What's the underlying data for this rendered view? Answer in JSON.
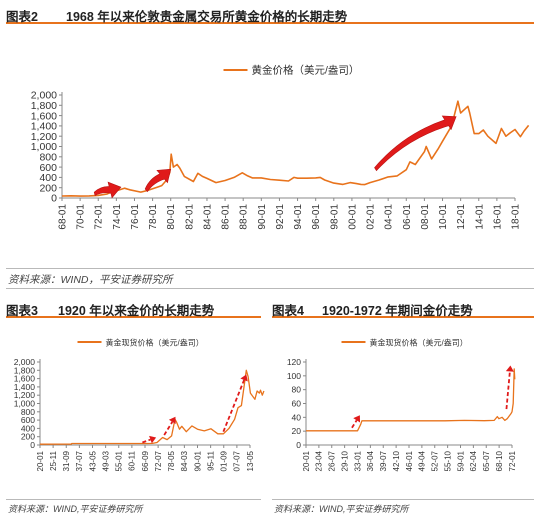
{
  "figures": [
    {
      "number": "图表2",
      "title": "1968 年以来伦敦贵金属交易所黄金价格的长期走势",
      "source": "资料来源：WIND，平安证券研究所"
    },
    {
      "number": "图表3",
      "title": "1920 年以来金价的长期走势",
      "source": "资料来源：WIND,平安证券研究所"
    },
    {
      "number": "图表4",
      "title": "1920-1972 年期间金价走势",
      "source": "资料来源：WIND,平安证券研究所"
    }
  ],
  "colors": {
    "series": "#e8731c",
    "arrow": "#e01a1a",
    "rule": "#e8731c"
  },
  "chart_data": [
    {
      "type": "line",
      "title": "",
      "legend": "黄金价格（美元/盎司）",
      "legend_position": "top-center",
      "x": [
        "68-01",
        "70-01",
        "72-01",
        "74-01",
        "76-01",
        "78-01",
        "80-01",
        "82-01",
        "84-01",
        "86-01",
        "88-01",
        "90-01",
        "92-01",
        "94-01",
        "96-01",
        "98-01",
        "00-01",
        "02-01",
        "04-01",
        "06-01",
        "08-01",
        "10-01",
        "12-01",
        "14-01",
        "16-01",
        "18-01"
      ],
      "x_tick_labels": [
        "68-01",
        "70-01",
        "72-01",
        "74-01",
        "76-01",
        "78-01",
        "80-01",
        "82-01",
        "84-01",
        "86-01",
        "88-01",
        "90-01",
        "92-01",
        "94-01",
        "96-01",
        "98-01",
        "00-01",
        "02-01",
        "04-01",
        "06-01",
        "08-01",
        "10-01",
        "12-01",
        "14-01",
        "16-01",
        "18-01"
      ],
      "y_ticks": [
        0,
        200,
        400,
        600,
        800,
        1000,
        1200,
        1400,
        1600,
        1800,
        2000
      ],
      "y_tick_labels": [
        "0",
        "200",
        "400",
        "600",
        "800",
        "1,000",
        "1,200",
        "1,400",
        "1,600",
        "1,800",
        "2,000"
      ],
      "ylim": [
        0,
        2000
      ],
      "points": [
        [
          1968.0,
          38
        ],
        [
          1969.0,
          42
        ],
        [
          1970.0,
          36
        ],
        [
          1971.0,
          40
        ],
        [
          1972.0,
          50
        ],
        [
          1973.0,
          80
        ],
        [
          1973.5,
          120
        ],
        [
          1974.0,
          140
        ],
        [
          1974.9,
          190
        ],
        [
          1975.5,
          160
        ],
        [
          1976.7,
          115
        ],
        [
          1977.5,
          150
        ],
        [
          1978.5,
          210
        ],
        [
          1979.0,
          240
        ],
        [
          1979.6,
          360
        ],
        [
          1979.9,
          500
        ],
        [
          1980.05,
          850
        ],
        [
          1980.3,
          600
        ],
        [
          1980.7,
          650
        ],
        [
          1981.0,
          580
        ],
        [
          1981.5,
          420
        ],
        [
          1982.5,
          320
        ],
        [
          1983.0,
          480
        ],
        [
          1983.5,
          420
        ],
        [
          1984.0,
          380
        ],
        [
          1985.0,
          300
        ],
        [
          1986.0,
          340
        ],
        [
          1987.0,
          400
        ],
        [
          1987.9,
          490
        ],
        [
          1988.5,
          430
        ],
        [
          1989.0,
          390
        ],
        [
          1990.0,
          390
        ],
        [
          1991.0,
          360
        ],
        [
          1992.0,
          345
        ],
        [
          1993.0,
          330
        ],
        [
          1993.6,
          400
        ],
        [
          1994.0,
          385
        ],
        [
          1995.0,
          385
        ],
        [
          1996.0,
          390
        ],
        [
          1996.5,
          400
        ],
        [
          1997.0,
          350
        ],
        [
          1998.0,
          290
        ],
        [
          1999.0,
          265
        ],
        [
          1999.8,
          300
        ],
        [
          2000.5,
          280
        ],
        [
          2001.0,
          265
        ],
        [
          2001.4,
          260
        ],
        [
          2002.0,
          300
        ],
        [
          2003.0,
          350
        ],
        [
          2004.0,
          410
        ],
        [
          2005.0,
          430
        ],
        [
          2006.0,
          550
        ],
        [
          2006.4,
          700
        ],
        [
          2007.0,
          650
        ],
        [
          2008.0,
          900
        ],
        [
          2008.2,
          1000
        ],
        [
          2008.8,
          760
        ],
        [
          2009.5,
          950
        ],
        [
          2010.0,
          1100
        ],
        [
          2011.0,
          1400
        ],
        [
          2011.7,
          1880
        ],
        [
          2012.0,
          1650
        ],
        [
          2012.8,
          1780
        ],
        [
          2013.0,
          1650
        ],
        [
          2013.5,
          1250
        ],
        [
          2014.0,
          1250
        ],
        [
          2014.5,
          1320
        ],
        [
          2015.0,
          1200
        ],
        [
          2015.9,
          1060
        ],
        [
          2016.5,
          1350
        ],
        [
          2017.0,
          1200
        ],
        [
          2017.5,
          1270
        ],
        [
          2018.0,
          1330
        ],
        [
          2018.6,
          1190
        ],
        [
          2019.0,
          1300
        ],
        [
          2019.5,
          1410
        ]
      ],
      "arrows": [
        {
          "from": [
            1971.6,
            80
          ],
          "to": [
            1974.5,
            210
          ]
        },
        {
          "from": [
            1977.3,
            150
          ],
          "to": [
            1980.0,
            560
          ]
        },
        {
          "from": [
            2002.6,
            560
          ],
          "to": [
            2011.5,
            1580
          ]
        }
      ]
    },
    {
      "type": "line",
      "title": "",
      "legend": "黄金现货价格（美元/盎司）",
      "legend_position": "top-center",
      "x_tick_labels": [
        "20-01",
        "25-11",
        "31-09",
        "37-07",
        "43-05",
        "49-03",
        "55-01",
        "60-11",
        "66-09",
        "72-07",
        "78-05",
        "84-03",
        "90-01",
        "95-11",
        "01-09",
        "07-07",
        "13-05"
      ],
      "y_ticks": [
        0,
        200,
        400,
        600,
        800,
        1000,
        1200,
        1400,
        1600,
        1800,
        2000
      ],
      "y_tick_labels": [
        "0",
        "200",
        "400",
        "600",
        "800",
        "1,000",
        "1,200",
        "1,400",
        "1,600",
        "1,800",
        "2,000"
      ],
      "ylim": [
        0,
        2000
      ],
      "points": [
        [
          1920.0,
          20
        ],
        [
          1933.9,
          21
        ],
        [
          1934.1,
          35
        ],
        [
          1968.0,
          35
        ],
        [
          1970.0,
          38
        ],
        [
          1972.0,
          60
        ],
        [
          1974.5,
          180
        ],
        [
          1976.5,
          130
        ],
        [
          1978.5,
          220
        ],
        [
          1980.0,
          620
        ],
        [
          1980.6,
          560
        ],
        [
          1982.0,
          380
        ],
        [
          1983.0,
          450
        ],
        [
          1985.0,
          320
        ],
        [
          1987.5,
          460
        ],
        [
          1990.0,
          380
        ],
        [
          1993.0,
          340
        ],
        [
          1996.0,
          390
        ],
        [
          1999.0,
          270
        ],
        [
          2001.5,
          270
        ],
        [
          2004.0,
          400
        ],
        [
          2006.5,
          620
        ],
        [
          2008.0,
          900
        ],
        [
          2009.5,
          950
        ],
        [
          2011.7,
          1800
        ],
        [
          2012.5,
          1650
        ],
        [
          2013.5,
          1250
        ],
        [
          2015.5,
          1100
        ],
        [
          2016.5,
          1300
        ],
        [
          2017.5,
          1250
        ],
        [
          2018.0,
          1320
        ],
        [
          2018.8,
          1200
        ],
        [
          2019.5,
          1300
        ]
      ],
      "arrows": [
        {
          "from": [
            1965.5,
            60
          ],
          "to": [
            1971.6,
            180
          ]
        },
        {
          "from": [
            1975.2,
            240
          ],
          "to": [
            1980.2,
            680
          ]
        },
        {
          "from": [
            2001.5,
            320
          ],
          "to": [
            2011.7,
            1700
          ]
        }
      ]
    },
    {
      "type": "line",
      "title": "",
      "legend": "黄金现货价格（美元/盎司）",
      "legend_position": "top-center",
      "x_tick_labels": [
        "20-01",
        "23-04",
        "26-07",
        "29-10",
        "33-01",
        "36-04",
        "39-07",
        "42-10",
        "46-01",
        "49-04",
        "52-07",
        "55-10",
        "59-01",
        "62-04",
        "65-07",
        "68-10",
        "72-01"
      ],
      "y_ticks": [
        0,
        20,
        40,
        60,
        80,
        100,
        120
      ],
      "y_tick_labels": [
        "0",
        "20",
        "40",
        "60",
        "80",
        "100",
        "120"
      ],
      "ylim": [
        0,
        120
      ],
      "points": [
        [
          1920.0,
          20.6
        ],
        [
          1925.0,
          20.6
        ],
        [
          1930.0,
          20.6
        ],
        [
          1933.0,
          20.6
        ],
        [
          1933.3,
          24
        ],
        [
          1933.8,
          30
        ],
        [
          1934.1,
          35
        ],
        [
          1945.0,
          35
        ],
        [
          1950.0,
          35
        ],
        [
          1955.0,
          35
        ],
        [
          1960.0,
          35.5
        ],
        [
          1965.0,
          35.2
        ],
        [
          1967.5,
          35.5
        ],
        [
          1968.3,
          41
        ],
        [
          1968.7,
          38
        ],
        [
          1969.5,
          40
        ],
        [
          1970.2,
          35.5
        ],
        [
          1970.8,
          38
        ],
        [
          1971.3,
          42
        ],
        [
          1971.7,
          45
        ],
        [
          1972.0,
          48
        ],
        [
          1972.3,
          60
        ],
        [
          1972.55,
          110
        ],
        [
          1972.7,
          95
        ]
      ],
      "arrows": [
        {
          "from": [
            1931.6,
            25
          ],
          "to": [
            1933.6,
            43
          ]
        },
        {
          "from": [
            1970.6,
            52
          ],
          "to": [
            1971.6,
            115
          ]
        }
      ]
    }
  ]
}
